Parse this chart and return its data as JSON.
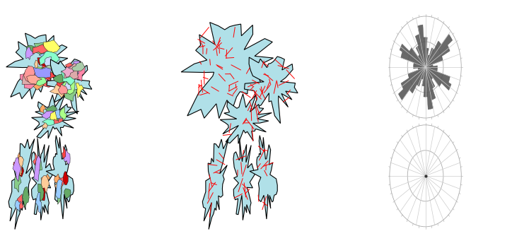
{
  "bg_color": "#ffffff",
  "light_blue": "#b0e0e8",
  "catchment_outline": "#000000",
  "lineament_color": "#ff0000",
  "rose_bar_color": "#555555",
  "rose_line_color": "#aaaaaa",
  "n_rose_bins": 18,
  "rose1_values": [
    8,
    5,
    12,
    18,
    22,
    15,
    10,
    6,
    9,
    14,
    20,
    16,
    11,
    7,
    13,
    19,
    17,
    8
  ],
  "sub_colors": [
    "#ff6666",
    "#ff4444",
    "#cc0000",
    "#66aa66",
    "#88cc88",
    "#ffaa66",
    "#ffcc99",
    "#99ccff",
    "#cc99ff",
    "#ffff66",
    "#aaff88",
    "#88ffcc",
    "#ff88aa",
    "#ddaaaa",
    "#aaccaa",
    "#ccddff",
    "#eeaacc",
    "#ff9999",
    "#99ff99",
    "#9999ff",
    "#ffaa99"
  ]
}
